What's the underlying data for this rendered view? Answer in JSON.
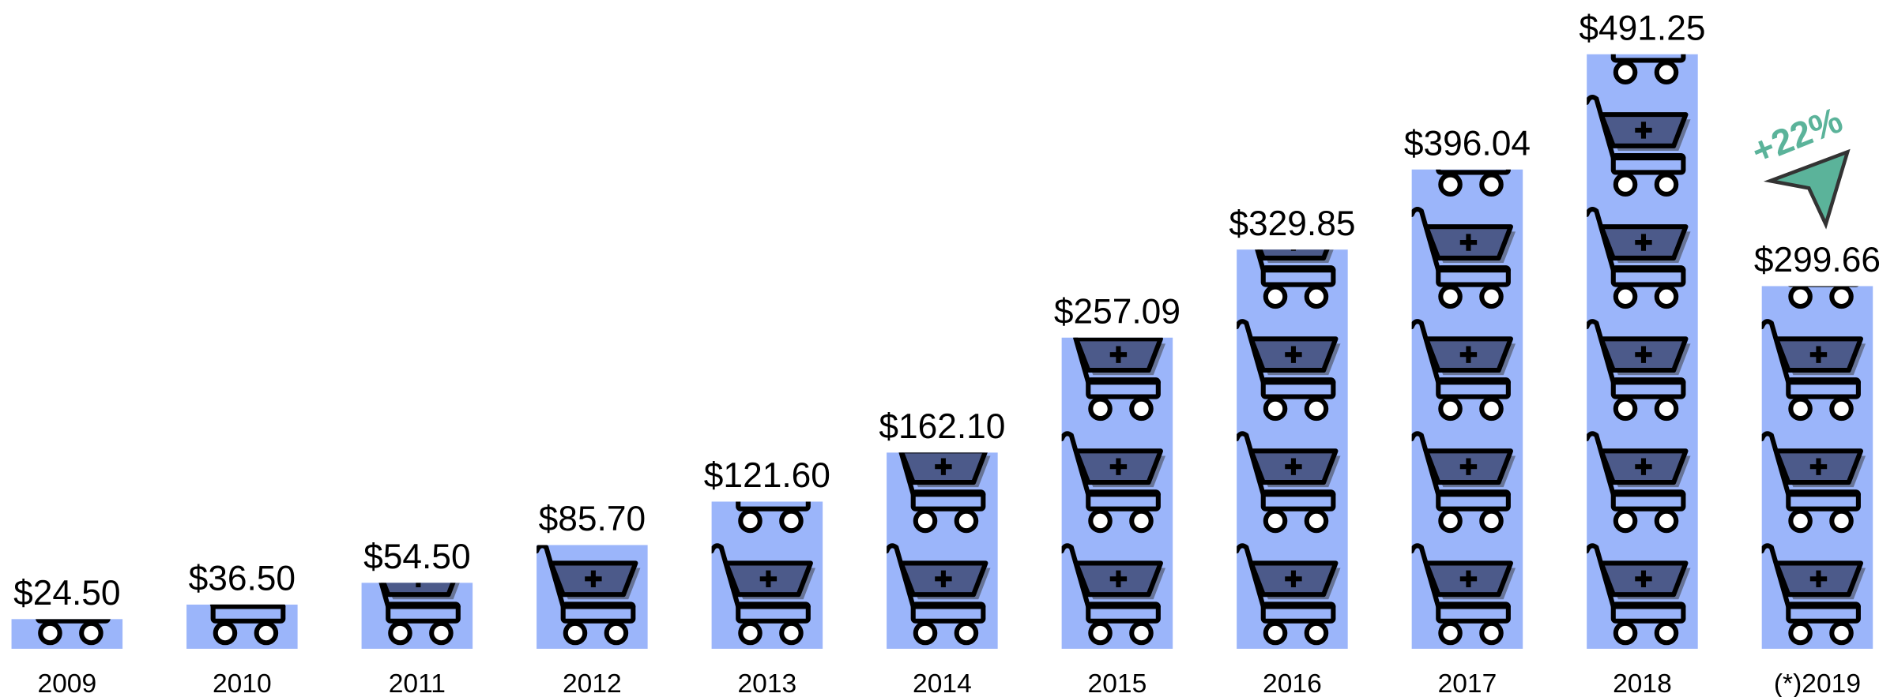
{
  "chart_data": {
    "type": "pictogram-bar",
    "categories": [
      "2009",
      "2010",
      "2011",
      "2012",
      "2013",
      "2014",
      "2015",
      "2016",
      "2017",
      "2018",
      "(*)2019"
    ],
    "values": [
      24.5,
      36.5,
      54.5,
      85.7,
      121.6,
      162.1,
      257.09,
      329.85,
      396.04,
      491.25,
      299.66
    ],
    "value_labels": [
      "$24.50",
      "$36.50",
      "$54.50",
      "$85.70",
      "$121.60",
      "$162.10",
      "$257.09",
      "$329.85",
      "$396.04",
      "$491.25",
      "$299.66"
    ],
    "color": "#9bb5fa",
    "annotation": "+22%"
  }
}
